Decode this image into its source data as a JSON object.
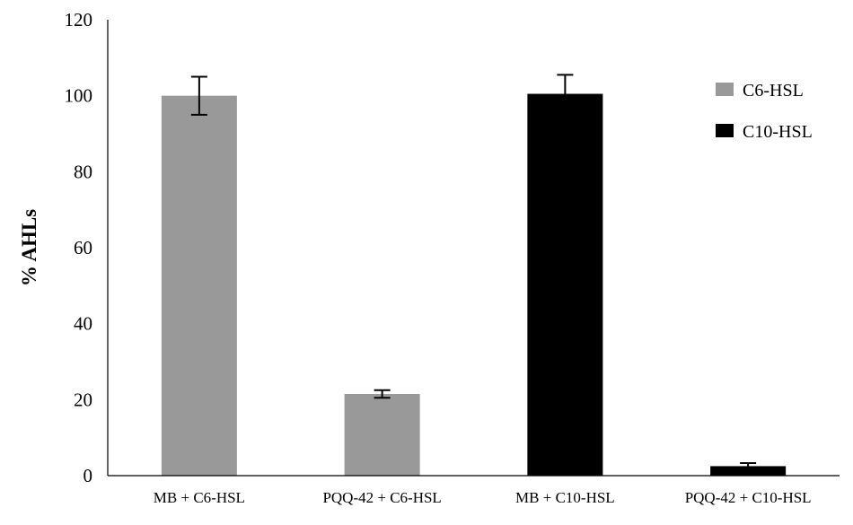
{
  "chart_data": {
    "type": "bar",
    "title": "",
    "xlabel": "",
    "ylabel": "% AHLs",
    "ylim": [
      0,
      120
    ],
    "yticks": [
      0,
      20,
      40,
      60,
      80,
      100,
      120
    ],
    "grid": false,
    "legend_position": "top-right",
    "categories": [
      "MB + C6-HSL",
      "PQQ-42 + C6-HSL",
      "MB + C10-HSL",
      "PQQ-42 + C10-HSL"
    ],
    "bars": [
      {
        "category": "MB + C6-HSL",
        "series": "C6-HSL",
        "value": 100,
        "error": 5
      },
      {
        "category": "PQQ-42 + C6-HSL",
        "series": "C6-HSL",
        "value": 21.5,
        "error": 1
      },
      {
        "category": "MB + C10-HSL",
        "series": "C10-HSL",
        "value": 100.5,
        "error": 5
      },
      {
        "category": "PQQ-42 + C10-HSL",
        "series": "C10-HSL",
        "value": 2.5,
        "error": 0.8
      }
    ],
    "series": [
      {
        "name": "C6-HSL",
        "color": "#999999"
      },
      {
        "name": "C10-HSL",
        "color": "#000000"
      }
    ]
  }
}
